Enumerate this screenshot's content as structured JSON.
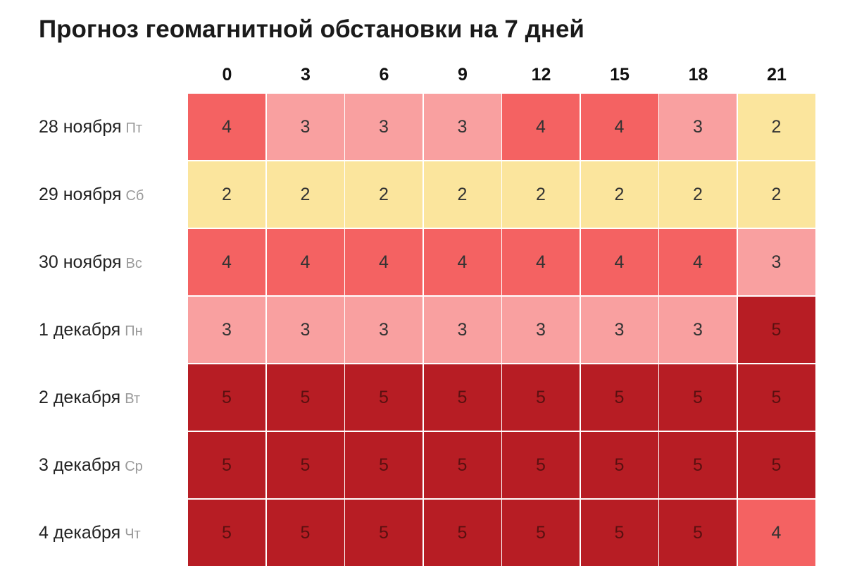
{
  "title": "Прогноз геомагнитной обстановки на 7 дней",
  "chart_data": {
    "type": "heatmap",
    "title": "Прогноз геомагнитной обстановки на 7 дней",
    "x": [
      "0",
      "3",
      "6",
      "9",
      "12",
      "15",
      "18",
      "21"
    ],
    "rows": [
      {
        "date": "28 ноября",
        "dow": "Пт"
      },
      {
        "date": "29 ноября",
        "dow": "Сб"
      },
      {
        "date": "30 ноября",
        "dow": "Вс"
      },
      {
        "date": "1 декабря",
        "dow": "Пн"
      },
      {
        "date": "2 декабря",
        "dow": "Вт"
      },
      {
        "date": "3 декабря",
        "dow": "Ср"
      },
      {
        "date": "4 декабря",
        "dow": "Чт"
      }
    ],
    "values": [
      [
        4,
        3,
        3,
        3,
        4,
        4,
        3,
        2
      ],
      [
        2,
        2,
        2,
        2,
        2,
        2,
        2,
        2
      ],
      [
        4,
        4,
        4,
        4,
        4,
        4,
        4,
        3
      ],
      [
        3,
        3,
        3,
        3,
        3,
        3,
        3,
        5
      ],
      [
        5,
        5,
        5,
        5,
        5,
        5,
        5,
        5
      ],
      [
        5,
        5,
        5,
        5,
        5,
        5,
        5,
        5
      ],
      [
        5,
        5,
        5,
        5,
        5,
        5,
        5,
        4
      ]
    ],
    "colors": {
      "2": "#fbe59d",
      "3": "#f9a0a0",
      "4": "#f46262",
      "5": "#b71d24"
    },
    "text_colors": {
      "2": "#333333",
      "3": "#333333",
      "4": "#333333",
      "5": "#5a1010"
    }
  }
}
